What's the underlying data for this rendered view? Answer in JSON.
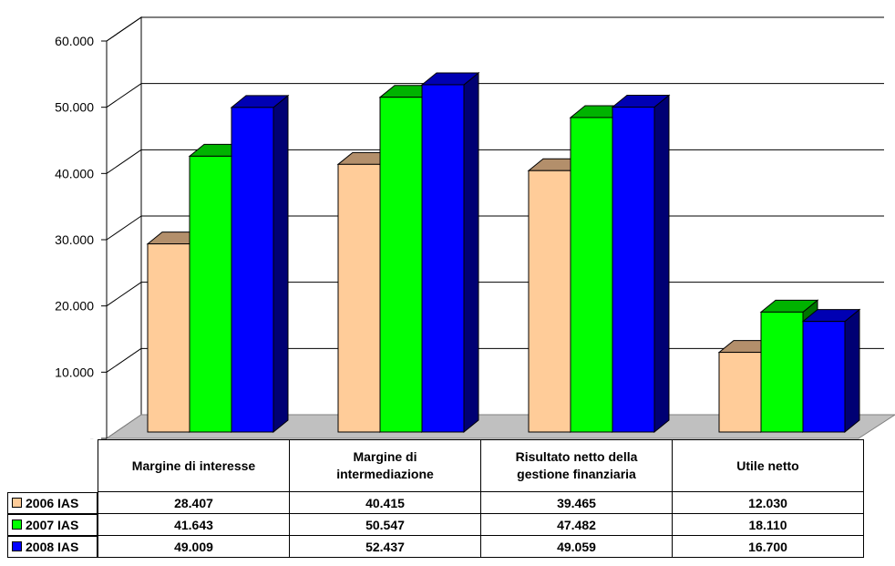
{
  "chart_data": {
    "type": "bar",
    "categories": [
      "Margine di interesse",
      "Margine di\nintermediazione",
      "Risultato netto della\ngestione finanziaria",
      "Utile netto"
    ],
    "series": [
      {
        "name": "2006 IAS",
        "values": [
          28407,
          40415,
          39465,
          12030
        ],
        "labels": [
          "28.407",
          "40.415",
          "39.465",
          "12.030"
        ],
        "color": "#FFCC99"
      },
      {
        "name": "2007 IAS",
        "values": [
          41643,
          50547,
          47482,
          18110
        ],
        "labels": [
          "41.643",
          "50.547",
          "47.482",
          "18.110"
        ],
        "color": "#00FF00"
      },
      {
        "name": "2008 IAS",
        "values": [
          49009,
          52437,
          49059,
          16700
        ],
        "labels": [
          "49.009",
          "52.437",
          "49.059",
          "16.700"
        ],
        "color": "#0000FF"
      }
    ],
    "y_ticks": [
      "-",
      "10.000",
      "20.000",
      "30.000",
      "40.000",
      "50.000",
      "60.000"
    ],
    "ylim": [
      0,
      60000
    ],
    "grid": true,
    "legend": "data-table-left",
    "three_d": true
  }
}
